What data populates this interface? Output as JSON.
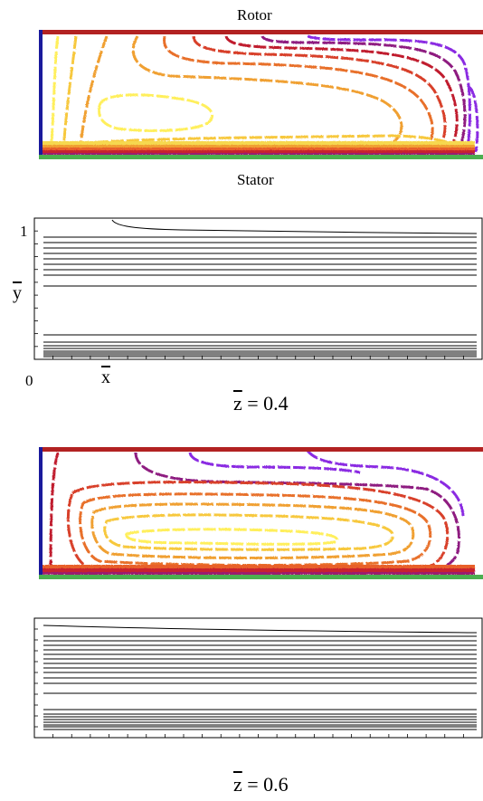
{
  "labels": {
    "top": "Rotor",
    "bottom": "Stator",
    "y_axis": "y",
    "y_tick_one": "1",
    "x_axis": "x",
    "x_tick_zero": "0"
  },
  "panels": [
    {
      "caption_var": "z",
      "caption_value": " = 0.4"
    },
    {
      "caption_var": "z",
      "caption_value": " = 0.6"
    }
  ],
  "colors": {
    "rotor_wall": "#b22222",
    "stator_wall": "#4caf50",
    "side_wall": "#1a1a9c",
    "contours": [
      "#ffef5c",
      "#f7c83c",
      "#f0a030",
      "#e8702a",
      "#d8402a",
      "#c01e2e",
      "#8e1a80",
      "#8a2be2"
    ]
  }
}
